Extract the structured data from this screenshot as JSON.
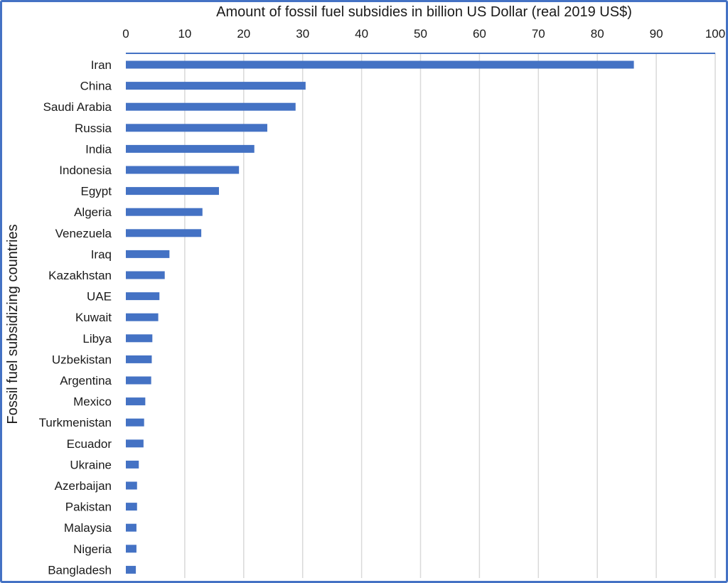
{
  "chart_data": {
    "type": "bar",
    "orientation": "horizontal",
    "xlabel": "Amount of fossil fuel subsidies in billion US Dollar (real 2019 US$)",
    "ylabel": "Fossil fuel subsidizing countries",
    "xlim": [
      0,
      100
    ],
    "x_ticks": [
      0,
      10,
      20,
      30,
      40,
      50,
      60,
      70,
      80,
      90,
      100
    ],
    "x_axis_position": "top",
    "grid": true,
    "bar_color": "#4472C4",
    "categories": [
      "Iran",
      "China",
      "Saudi Arabia",
      "Russia",
      "India",
      "Indonesia",
      "Egypt",
      "Algeria",
      "Venezuela",
      "Iraq",
      "Kazakhstan",
      "UAE",
      "Kuwait",
      "Libya",
      "Uzbekistan",
      "Argentina",
      "Mexico",
      "Turkmenistan",
      "Ecuador",
      "Ukraine",
      "Azerbaijan",
      "Pakistan",
      "Malaysia",
      "Nigeria",
      "Bangladesh"
    ],
    "values": [
      86.2,
      30.5,
      28.8,
      24.0,
      21.8,
      19.2,
      15.8,
      13.0,
      12.8,
      7.4,
      6.6,
      5.7,
      5.5,
      4.5,
      4.4,
      4.3,
      3.3,
      3.1,
      3.0,
      2.2,
      1.9,
      1.9,
      1.8,
      1.8,
      1.7
    ]
  }
}
